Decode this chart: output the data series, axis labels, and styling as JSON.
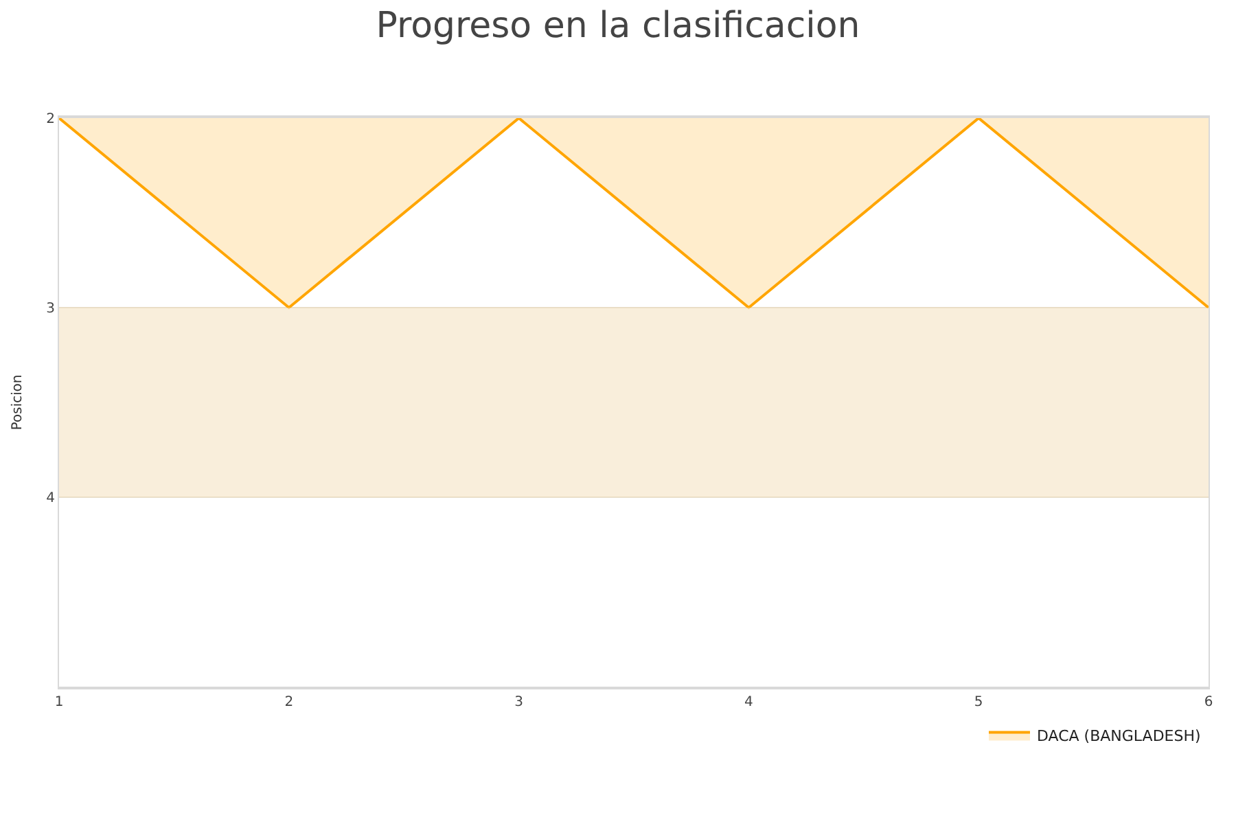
{
  "chart_data": {
    "type": "area",
    "title": "Progreso en la clasificacion",
    "ylabel": "Posicion",
    "x": [
      1,
      2,
      3,
      4,
      5,
      6
    ],
    "series": [
      {
        "name": "DACA (BANGLADESH)",
        "color": "#ffa500",
        "values": [
          2,
          3,
          2,
          3,
          2,
          3
        ]
      }
    ],
    "xlim": [
      1,
      6
    ],
    "xticks": [
      1,
      2,
      3,
      4,
      5,
      6
    ],
    "ylim": [
      5,
      2
    ],
    "yticks": [
      2,
      3,
      4
    ],
    "bands": [
      {
        "axis": "y",
        "from": 3,
        "to": 4,
        "color": "#f5e3c3"
      }
    ],
    "grid": "y",
    "legend": "bottom right"
  }
}
